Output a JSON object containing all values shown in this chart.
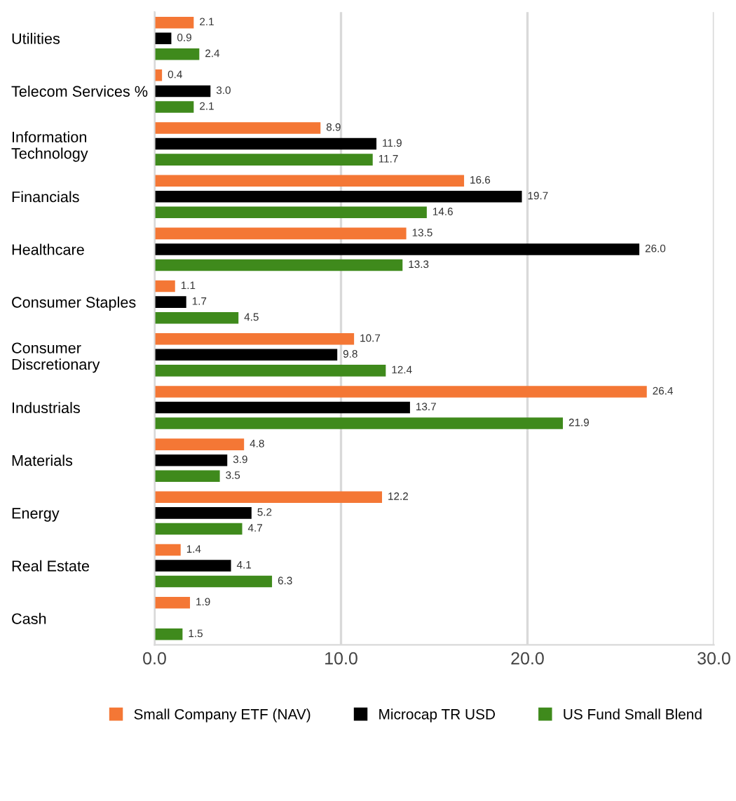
{
  "chart_data": {
    "type": "bar",
    "orientation": "horizontal",
    "categories": [
      "Utilities",
      "Telecom Services %",
      "Information\nTechnology",
      "Financials",
      "Healthcare",
      "Consumer Staples",
      "Consumer\nDiscretionary",
      "Industrials",
      "Materials",
      "Energy",
      "Real Estate",
      "Cash"
    ],
    "series": [
      {
        "name": "Small Company ETF (NAV)",
        "color": "#f47735",
        "values": [
          2.1,
          0.4,
          8.9,
          16.6,
          13.5,
          1.1,
          10.7,
          26.4,
          4.8,
          12.2,
          1.4,
          1.9
        ],
        "value_labels": [
          "2.1",
          "0.4",
          "8.9",
          "16.6",
          "13.5",
          "1.1",
          "10.7",
          "26.4",
          "4.8",
          "12.2",
          "1.4",
          "1.9"
        ]
      },
      {
        "name": "Microcap TR USD",
        "color": "#000000",
        "values": [
          0.9,
          3.0,
          11.9,
          19.7,
          26.0,
          1.7,
          9.8,
          13.7,
          3.9,
          5.2,
          4.1,
          null
        ],
        "value_labels": [
          "0.9",
          "3.0",
          "11.9",
          "19.7",
          "26.0",
          "1.7",
          "9.8",
          "13.7",
          "3.9",
          "5.2",
          "4.1",
          null
        ]
      },
      {
        "name": "US Fund Small Blend",
        "color": "#3f8a1c",
        "values": [
          2.4,
          2.1,
          11.7,
          14.6,
          13.3,
          4.5,
          12.4,
          21.9,
          3.5,
          4.7,
          6.3,
          1.5
        ],
        "value_labels": [
          "2.4",
          "2.1",
          "11.7",
          "14.6",
          "13.3",
          "4.5",
          "12.4",
          "21.9",
          "3.5",
          "4.7",
          "6.3",
          "1.5"
        ]
      }
    ],
    "xlim": [
      0,
      30
    ],
    "xticks": [
      {
        "value": 0,
        "label": "0.0"
      },
      {
        "value": 10,
        "label": "10.0"
      },
      {
        "value": 20,
        "label": "20.0"
      },
      {
        "value": 30,
        "label": "30.0"
      }
    ],
    "grid": "x",
    "legend": "bottom"
  }
}
